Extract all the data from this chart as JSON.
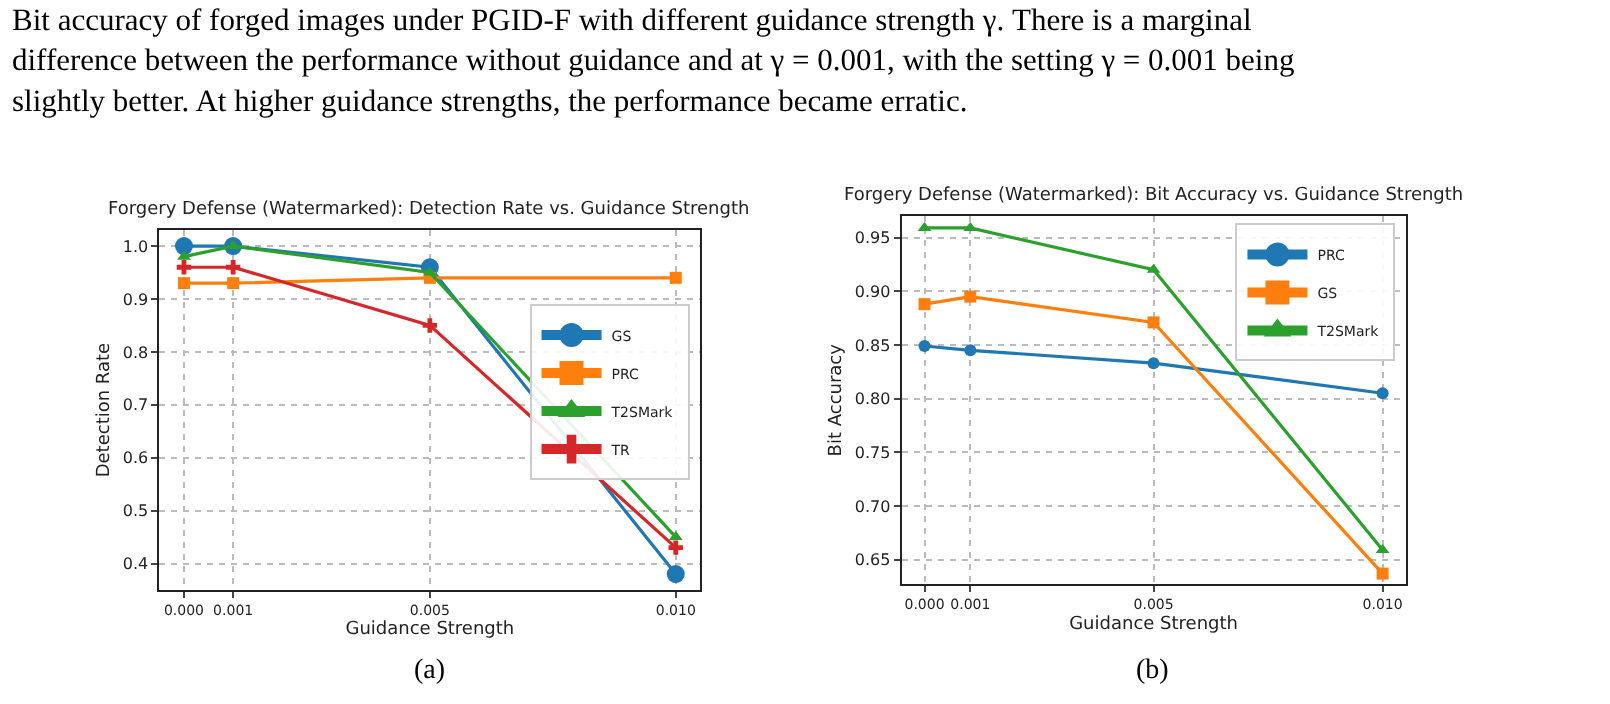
{
  "chart_data": [
    {
      "type": "line",
      "title": "Forgery Defense (Watermarked): Detection Rate vs. Guidance Strength",
      "xlabel": "Guidance Strength",
      "ylabel": "Detection Rate",
      "annotations": [
        "Bit accuracy of forged images under PGID-F with different guidance strength γ. There is a marginal difference between the performance without guidance and at γ = 0.001, with the setting γ = 0.001 being slightly better. At higher guidance strengths, the performance became erratic.",
        "(a)"
      ],
      "x": [
        0.0,
        0.001,
        0.005,
        0.01
      ],
      "series": [
        {
          "name": "GS",
          "color": "#1f77b4",
          "marker": "circle",
          "values": [
            1.0,
            1.0,
            0.96,
            0.38
          ]
        },
        {
          "name": "PRC",
          "color": "#ff7f0e",
          "marker": "square",
          "values": [
            0.93,
            0.93,
            0.94,
            0.94
          ]
        },
        {
          "name": "T2SMark",
          "color": "#2ca02c",
          "marker": "triangle",
          "values": [
            0.98,
            1.0,
            0.95,
            0.45
          ]
        },
        {
          "name": "TR",
          "color": "#d62728",
          "marker": "cross",
          "values": [
            0.96,
            0.96,
            0.85,
            0.43
          ]
        }
      ],
      "xlim": [
        -0.0005,
        0.0105
      ],
      "xticks": [
        {
          "value": 0.0,
          "label": "0.000"
        },
        {
          "value": 0.001,
          "label": "0.001"
        },
        {
          "value": 0.005,
          "label": "0.005"
        },
        {
          "value": 0.01,
          "label": "0.010"
        }
      ],
      "ylim": [
        0.35,
        1.03
      ],
      "yticks": [
        0.4,
        0.5,
        0.6,
        0.7,
        0.8,
        0.9,
        {
          "value": 1.0,
          "label": "1.0"
        }
      ],
      "grid": true,
      "legend": "right",
      "line_style": "solid"
    },
    {
      "type": "line",
      "title": "Forgery Defense (Watermarked): Bit Accuracy vs. Guidance Strength",
      "xlabel": "Guidance Strength",
      "ylabel": "Bit Accuracy",
      "annotations": [
        "(b)"
      ],
      "x": [
        0.0,
        0.001,
        0.005,
        0.01
      ],
      "series": [
        {
          "name": "PRC",
          "color": "#1f77b4",
          "marker": "circle",
          "values": [
            0.849,
            0.845,
            0.833,
            0.805
          ]
        },
        {
          "name": "GS",
          "color": "#ff7f0e",
          "marker": "square",
          "values": [
            0.888,
            0.895,
            0.871,
            0.637
          ]
        },
        {
          "name": "T2SMark",
          "color": "#2ca02c",
          "marker": "triangle",
          "values": [
            0.959,
            0.959,
            0.92,
            0.659
          ]
        }
      ],
      "xlim": [
        -0.0005,
        0.0105
      ],
      "xticks": [
        {
          "value": 0.0,
          "label": "0.000"
        },
        {
          "value": 0.001,
          "label": "0.001"
        },
        {
          "value": 0.005,
          "label": "0.005"
        },
        {
          "value": 0.01,
          "label": "0.010"
        }
      ],
      "ylim": [
        0.627,
        0.97
      ],
      "yticks": [
        {
          "value": 0.65,
          "label": "0.65"
        },
        {
          "value": 0.7,
          "label": "0.70"
        },
        {
          "value": 0.75,
          "label": "0.75"
        },
        {
          "value": 0.8,
          "label": "0.80"
        },
        {
          "value": 0.85,
          "label": "0.85"
        },
        {
          "value": 0.9,
          "label": "0.90"
        },
        {
          "value": 0.95,
          "label": "0.95"
        }
      ],
      "grid": true,
      "legend": "top right",
      "line_style": "solid"
    }
  ]
}
